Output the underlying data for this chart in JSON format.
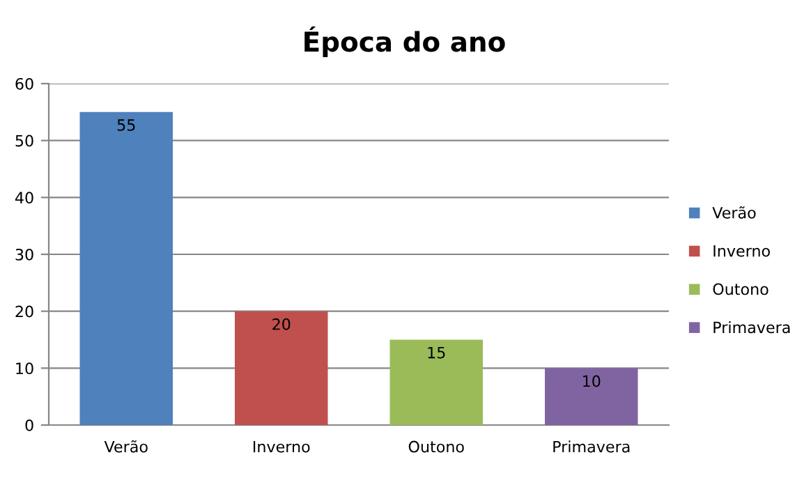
{
  "chart_data": {
    "type": "bar",
    "title": "Época do ano",
    "categories": [
      "Verão",
      "Inverno",
      "Outono",
      "Primavera"
    ],
    "series": [
      {
        "name": "Verão",
        "color": "#4f81bd",
        "values": [
          55,
          null,
          null,
          null
        ]
      },
      {
        "name": "Inverno",
        "color": "#c0504d",
        "values": [
          null,
          20,
          null,
          null
        ]
      },
      {
        "name": "Outono",
        "color": "#9bbb59",
        "values": [
          null,
          null,
          15,
          null
        ]
      },
      {
        "name": "Primavera",
        "color": "#8064a2",
        "values": [
          null,
          null,
          null,
          10
        ]
      }
    ],
    "ylim": [
      0,
      60
    ],
    "yticks": [
      0,
      10,
      20,
      30,
      40,
      50,
      60
    ],
    "grid": "y",
    "legend": "right",
    "data_labels": true
  }
}
